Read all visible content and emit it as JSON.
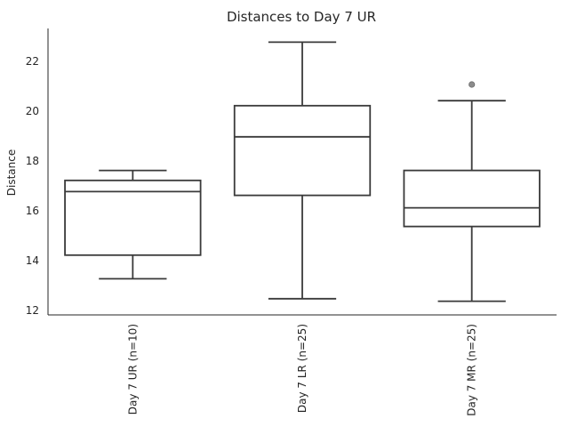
{
  "chart_data": {
    "type": "box",
    "title": "Distances to Day 7 UR",
    "xlabel": "",
    "ylabel": "Distance",
    "ylim": [
      11.8,
      23.3
    ],
    "yticks": [
      12,
      14,
      16,
      18,
      20,
      22
    ],
    "grid": false,
    "categories": [
      "Day 7 UR (n=10)",
      "Day 7 LR (n=25)",
      "Day 7 MR (n=25)"
    ],
    "boxes": [
      {
        "whisker_low": 13.25,
        "q1": 14.2,
        "median": 16.75,
        "q3": 17.2,
        "whisker_high": 17.6,
        "outliers": []
      },
      {
        "whisker_low": 12.45,
        "q1": 16.6,
        "median": 18.95,
        "q3": 20.2,
        "whisker_high": 22.75,
        "outliers": []
      },
      {
        "whisker_low": 12.35,
        "q1": 15.35,
        "median": 16.1,
        "q3": 17.6,
        "whisker_high": 20.4,
        "outliers": [
          21.05
        ]
      }
    ]
  }
}
